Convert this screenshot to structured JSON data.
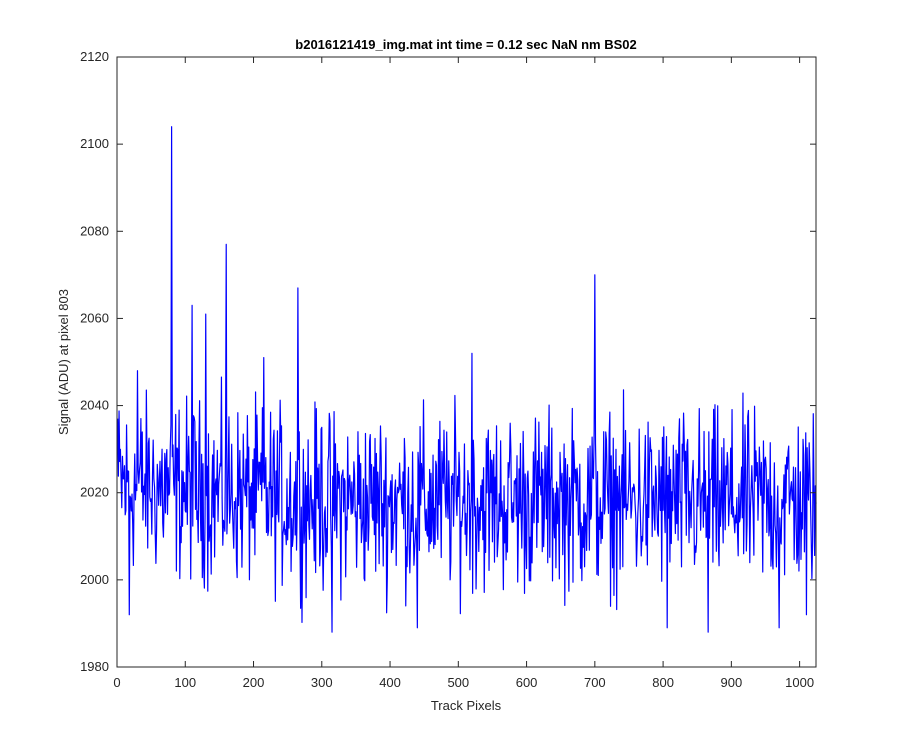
{
  "chart_data": {
    "type": "line",
    "title": "b2016121419_img.mat int time = 0.12 sec  NaN nm BS02",
    "xlabel": "Track Pixels",
    "ylabel": "Signal (ADU) at pixel 803",
    "xlim": [
      0,
      1024
    ],
    "ylim": [
      1980,
      2120
    ],
    "xticks": [
      0,
      100,
      200,
      300,
      400,
      500,
      600,
      700,
      800,
      900,
      1000
    ],
    "yticks": [
      1980,
      2000,
      2020,
      2040,
      2060,
      2080,
      2100,
      2120
    ],
    "grid": false,
    "line_color": "#0000ff",
    "series": [
      {
        "x_start": 1,
        "x_step": 1,
        "mean_level": 2018,
        "noise_amplitude": 11,
        "n_points": 1024,
        "notable_points": [
          {
            "x": 1,
            "y": 2037
          },
          {
            "x": 18,
            "y": 1992
          },
          {
            "x": 30,
            "y": 2048
          },
          {
            "x": 80,
            "y": 2104
          },
          {
            "x": 110,
            "y": 2063
          },
          {
            "x": 130,
            "y": 2061
          },
          {
            "x": 160,
            "y": 2077
          },
          {
            "x": 215,
            "y": 2051
          },
          {
            "x": 265,
            "y": 2067
          },
          {
            "x": 300,
            "y": 2035
          },
          {
            "x": 315,
            "y": 1988
          },
          {
            "x": 440,
            "y": 1989
          },
          {
            "x": 520,
            "y": 2052
          },
          {
            "x": 700,
            "y": 2070
          },
          {
            "x": 806,
            "y": 1989
          },
          {
            "x": 866,
            "y": 1988
          },
          {
            "x": 970,
            "y": 1989
          },
          {
            "x": 1010,
            "y": 1992
          }
        ]
      }
    ]
  }
}
